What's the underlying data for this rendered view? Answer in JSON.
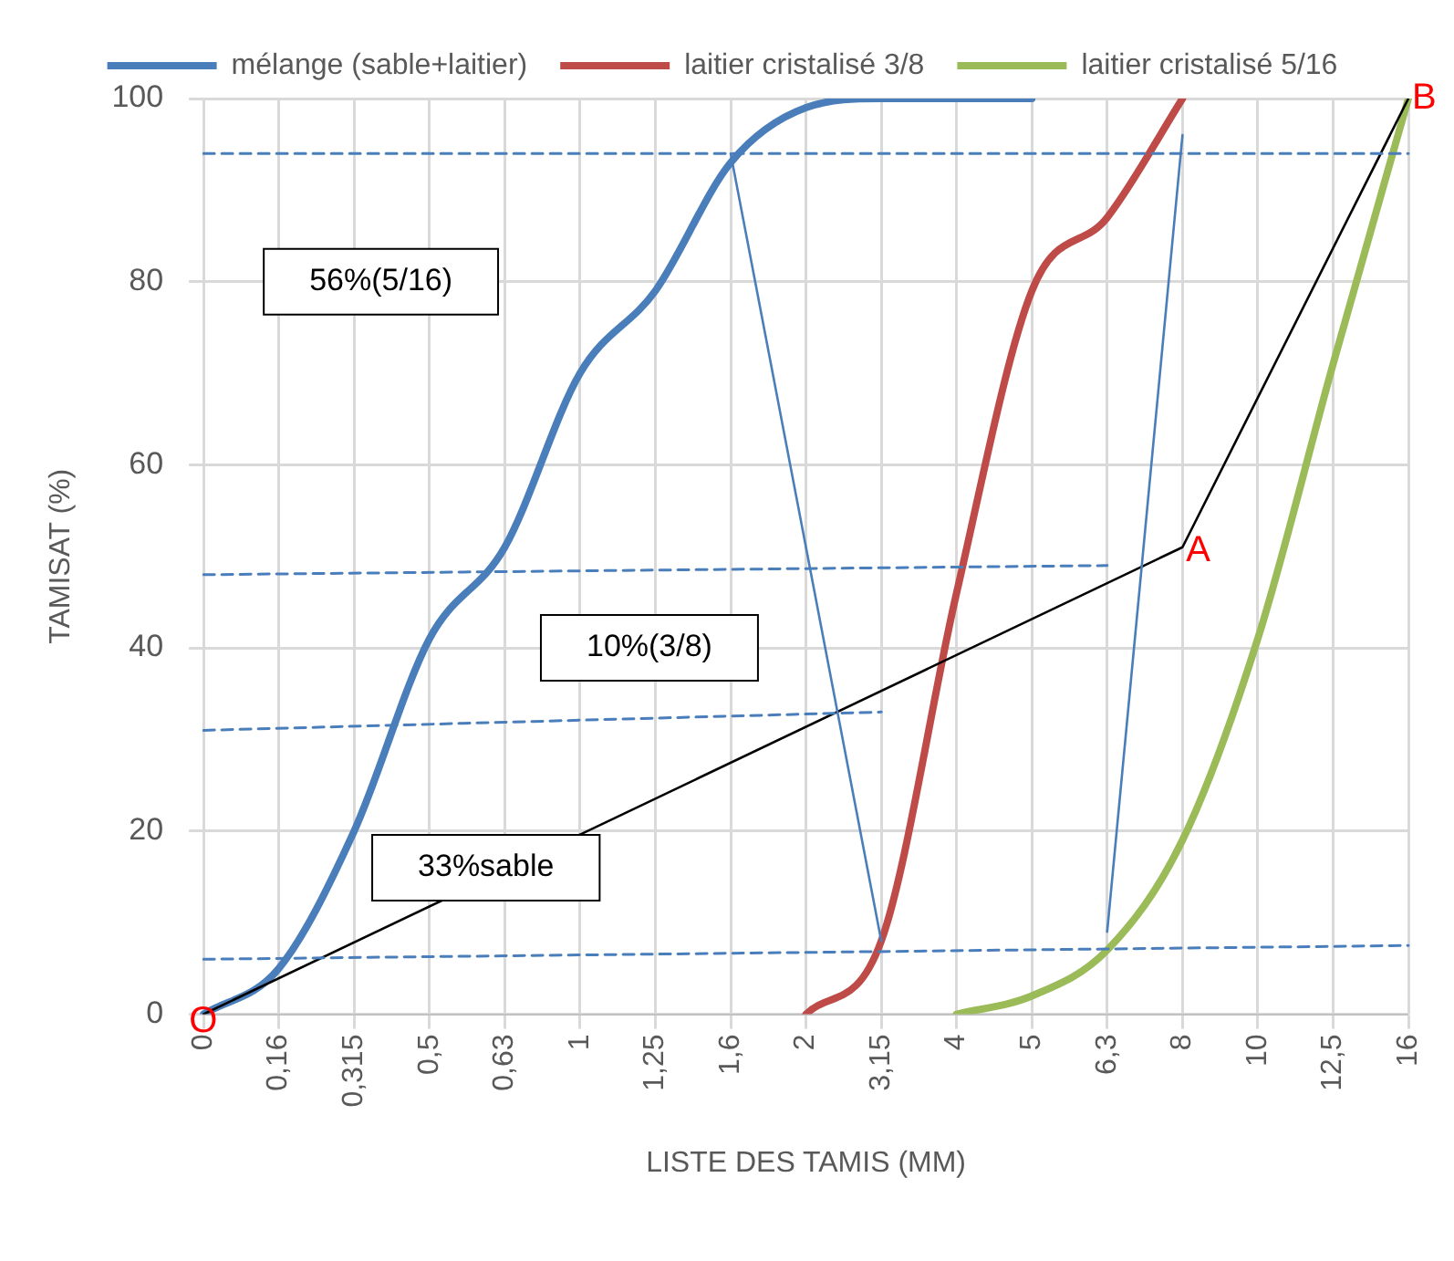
{
  "chart_data": {
    "type": "line",
    "xlabel": "LISTE DES TAMIS (MM)",
    "ylabel": "TAMISAT (%)",
    "categories": [
      "0",
      "0,16",
      "0,315",
      "0,5",
      "0,63",
      "1",
      "1,25",
      "1,6",
      "2",
      "3,15",
      "4",
      "5",
      "6,3",
      "8",
      "10",
      "12,5",
      "16"
    ],
    "ylim": [
      0,
      100
    ],
    "yticks": [
      0,
      20,
      40,
      60,
      80,
      100
    ],
    "grid": true,
    "legend": "top",
    "series": [
      {
        "name": "mélange (sable+laitier)",
        "color": "#4a7ebb",
        "values": [
          0,
          5,
          20,
          41,
          51,
          70,
          79,
          93,
          99,
          100,
          100,
          100,
          null,
          null,
          null,
          null,
          null
        ]
      },
      {
        "name": "laitier cristalisé 3/8",
        "color": "#be4b48",
        "values": [
          null,
          null,
          null,
          null,
          null,
          null,
          null,
          null,
          0,
          8,
          46,
          79,
          87,
          100,
          null,
          null,
          null
        ]
      },
      {
        "name": "laitier cristalisé 5/16",
        "color": "#9bbb59",
        "values": [
          null,
          null,
          null,
          null,
          null,
          null,
          null,
          null,
          null,
          null,
          0,
          2,
          7,
          19,
          41,
          71,
          100
        ]
      },
      {
        "color": "#4a7ebb",
        "line_style": "dashed",
        "values": [
          94,
          null,
          null,
          null,
          null,
          null,
          null,
          null,
          null,
          null,
          null,
          null,
          null,
          null,
          null,
          null,
          94
        ]
      },
      {
        "color": "#4a7ebb",
        "line_style": "dashed",
        "values": [
          48,
          null,
          null,
          null,
          null,
          null,
          null,
          null,
          null,
          null,
          null,
          null,
          49,
          null,
          null,
          null,
          null
        ]
      },
      {
        "color": "#4a7ebb",
        "line_style": "dashed",
        "values": [
          31,
          null,
          null,
          null,
          null,
          null,
          null,
          null,
          null,
          33,
          null,
          null,
          null,
          null,
          null,
          null,
          null
        ]
      },
      {
        "color": "#4a7ebb",
        "line_style": "dashed",
        "values": [
          6,
          null,
          null,
          null,
          null,
          null,
          null,
          null,
          null,
          null,
          null,
          null,
          null,
          null,
          null,
          null,
          7.5
        ]
      },
      {
        "color": "#4a7ebb",
        "line_style": "solid",
        "values": [
          null,
          null,
          null,
          null,
          null,
          null,
          null,
          94,
          null,
          8,
          null,
          null,
          null,
          null,
          null,
          null,
          null
        ]
      },
      {
        "color": "#4a7ebb",
        "line_style": "solid",
        "values": [
          null,
          null,
          null,
          null,
          null,
          null,
          null,
          null,
          null,
          null,
          null,
          null,
          9,
          96,
          null,
          null,
          null
        ]
      },
      {
        "color": "#000000",
        "line_style": "solid",
        "values": [
          0,
          null,
          null,
          null,
          null,
          null,
          null,
          null,
          null,
          null,
          null,
          null,
          null,
          51,
          null,
          null,
          100
        ]
      }
    ],
    "annotations": [
      "56%(5/16)",
      "10%(3/8)",
      "33%sable",
      {
        "text": "O",
        "x": "0",
        "y": 0
      },
      {
        "text": "A",
        "x": "8",
        "y": 51
      },
      {
        "text": "B",
        "x": "16",
        "y": 100
      }
    ]
  }
}
